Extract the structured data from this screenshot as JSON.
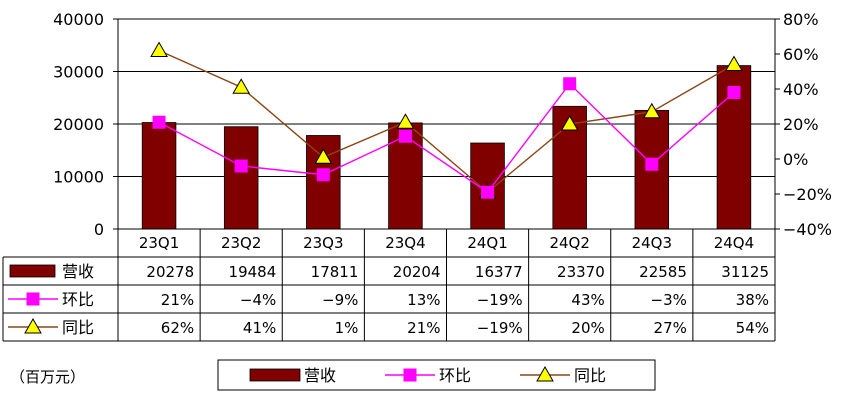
{
  "chart_data": {
    "type": "bar",
    "categories": [
      "23Q1",
      "23Q2",
      "23Q3",
      "23Q4",
      "24Q1",
      "24Q2",
      "24Q3",
      "24Q4"
    ],
    "series": [
      {
        "name": "营收",
        "kind": "bar",
        "axis": "left",
        "color": "#800000",
        "values": [
          20278,
          19484,
          17811,
          20204,
          16377,
          23370,
          22585,
          31125
        ],
        "labels": [
          "20278",
          "19484",
          "17811",
          "20204",
          "16377",
          "23370",
          "22585",
          "31125"
        ]
      },
      {
        "name": "环比",
        "kind": "line",
        "axis": "right",
        "color": "#FF00FF",
        "marker": "square",
        "values": [
          21,
          -4,
          -9,
          13,
          -19,
          43,
          -3,
          38
        ],
        "labels": [
          "21%",
          "-4%",
          "-9%",
          "13%",
          "-19%",
          "43%",
          "-3%",
          "38%"
        ]
      },
      {
        "name": "同比",
        "kind": "line",
        "axis": "right",
        "color": "#8B4513",
        "marker": "triangle",
        "marker_fill": "#FFFF00",
        "values": [
          62,
          41,
          1,
          21,
          -19,
          20,
          27,
          54
        ],
        "labels": [
          "62%",
          "41%",
          "1%",
          "21%",
          "-19%",
          "20%",
          "27%",
          "54%"
        ]
      }
    ],
    "y_left": {
      "min": 0,
      "max": 40000,
      "ticks": [
        "0",
        "10000",
        "20000",
        "30000",
        "40000"
      ]
    },
    "y_right": {
      "min": -40,
      "max": 80,
      "ticks": [
        "-40%",
        "-20%",
        "0%",
        "20%",
        "40%",
        "60%",
        "80%"
      ]
    },
    "unit_note": "（百万元）",
    "grid": true,
    "legend_position": "bottom",
    "data_table": true
  }
}
